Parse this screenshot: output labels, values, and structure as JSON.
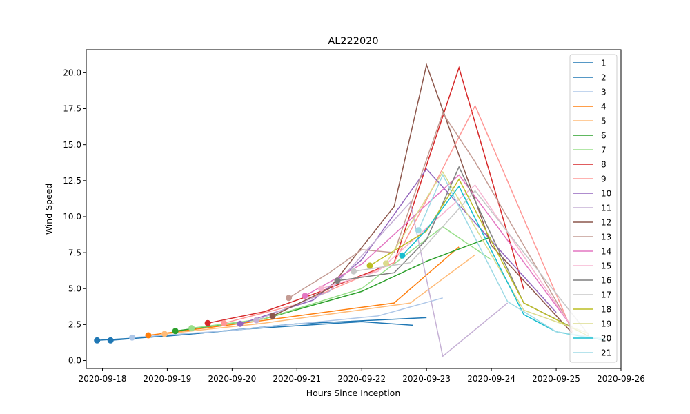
{
  "chart_data": {
    "type": "line",
    "title": "AL222020",
    "xlabel": "Hours Since Inception",
    "ylabel": "Wind Speed",
    "x_type": "date",
    "xlim": [
      "2020-09-17T18:00",
      "2020-09-26T00:00"
    ],
    "ylim": [
      -0.55,
      21.6
    ],
    "x_ticks": [
      "2020-09-18",
      "2020-09-19",
      "2020-09-20",
      "2020-09-21",
      "2020-09-22",
      "2020-09-23",
      "2020-09-24",
      "2020-09-25",
      "2020-09-26"
    ],
    "y_ticks": [
      "0.0",
      "2.5",
      "5.0",
      "7.5",
      "10.0",
      "12.5",
      "15.0",
      "17.5",
      "20.0"
    ],
    "grid": false,
    "legend_position": "top-right",
    "series": [
      {
        "name": "1",
        "color": "#1f77b4",
        "marker": {
          "x": "2020-09-17T22:00",
          "y": 1.4
        },
        "x": [
          "2020-09-17T22:00",
          "2020-09-19T00:00",
          "2020-09-20T06:00",
          "2020-09-22T00:00",
          "2020-09-22T19:00"
        ],
        "y": [
          1.4,
          1.7,
          2.2,
          2.7,
          2.45
        ]
      },
      {
        "name": "2",
        "color": "#1f77b4",
        "marker": {
          "x": "2020-09-18T03:00",
          "y": 1.4
        },
        "x": [
          "2020-09-18T03:00",
          "2020-09-19T12:00",
          "2020-09-21T00:00",
          "2020-09-23T00:00"
        ],
        "y": [
          1.4,
          1.9,
          2.55,
          2.98
        ]
      },
      {
        "name": "3",
        "color": "#aec7e8",
        "marker": {
          "x": "2020-09-18T11:00",
          "y": 1.6
        },
        "x": [
          "2020-09-18T11:00",
          "2020-09-20T00:00",
          "2020-09-22T06:00",
          "2020-09-23T06:00"
        ],
        "y": [
          1.6,
          2.1,
          3.1,
          4.35
        ]
      },
      {
        "name": "4",
        "color": "#ff7f0e",
        "marker": {
          "x": "2020-09-18T17:00",
          "y": 1.75
        },
        "x": [
          "2020-09-18T17:00",
          "2020-09-20T00:00",
          "2020-09-22T12:00",
          "2020-09-23T12:00"
        ],
        "y": [
          1.75,
          2.5,
          4.0,
          7.9
        ]
      },
      {
        "name": "5",
        "color": "#ffbb78",
        "marker": {
          "x": "2020-09-18T23:00",
          "y": 1.85
        },
        "x": [
          "2020-09-18T23:00",
          "2020-09-20T12:00",
          "2020-09-22T18:00",
          "2020-09-23T18:00"
        ],
        "y": [
          1.85,
          2.6,
          4.0,
          7.35
        ]
      },
      {
        "name": "6",
        "color": "#2ca02c",
        "marker": {
          "x": "2020-09-19T03:00",
          "y": 2.05
        },
        "x": [
          "2020-09-19T03:00",
          "2020-09-20T12:00",
          "2020-09-22T00:00",
          "2020-09-23T00:00",
          "2020-09-24T00:00"
        ],
        "y": [
          2.05,
          2.9,
          4.8,
          6.9,
          8.6
        ]
      },
      {
        "name": "7",
        "color": "#98df8a",
        "marker": {
          "x": "2020-09-19T09:00",
          "y": 2.25
        },
        "x": [
          "2020-09-19T09:00",
          "2020-09-20T12:00",
          "2020-09-22T00:00",
          "2020-09-23T06:00",
          "2020-09-24T00:00"
        ],
        "y": [
          2.25,
          2.9,
          5.0,
          9.3,
          7.0
        ]
      },
      {
        "name": "8",
        "color": "#d62728",
        "marker": {
          "x": "2020-09-19T15:00",
          "y": 2.6
        },
        "x": [
          "2020-09-19T15:00",
          "2020-09-20T12:00",
          "2020-09-21T06:00",
          "2020-09-22T12:00",
          "2020-09-23T12:00",
          "2020-09-24T12:00"
        ],
        "y": [
          2.6,
          3.4,
          4.6,
          6.8,
          20.35,
          4.95
        ]
      },
      {
        "name": "9",
        "color": "#ff9896",
        "marker": {
          "x": "2020-09-19T21:00",
          "y": 2.6
        },
        "x": [
          "2020-09-19T21:00",
          "2020-09-21T00:00",
          "2020-09-22T12:00",
          "2020-09-23T18:00",
          "2020-09-25T06:00"
        ],
        "y": [
          2.6,
          3.9,
          6.8,
          17.7,
          2.0
        ]
      },
      {
        "name": "10",
        "color": "#9467bd",
        "marker": {
          "x": "2020-09-20T03:00",
          "y": 2.55
        },
        "x": [
          "2020-09-20T03:00",
          "2020-09-21T06:00",
          "2020-09-22T00:00",
          "2020-09-23T00:00",
          "2020-09-25T00:00"
        ],
        "y": [
          2.55,
          4.2,
          7.0,
          13.3,
          3.35
        ]
      },
      {
        "name": "11",
        "color": "#c5b0d5",
        "marker": {
          "x": "2020-09-20T09:00",
          "y": 2.8
        },
        "x": [
          "2020-09-20T09:00",
          "2020-09-21T12:00",
          "2020-09-22T18:00",
          "2020-09-23T06:00",
          "2020-09-24T06:00"
        ],
        "y": [
          2.8,
          4.8,
          11.0,
          0.3,
          4.0
        ]
      },
      {
        "name": "12",
        "color": "#8c564b",
        "marker": {
          "x": "2020-09-20T15:00",
          "y": 3.1
        },
        "x": [
          "2020-09-20T15:00",
          "2020-09-21T12:00",
          "2020-09-22T12:00",
          "2020-09-23T00:00",
          "2020-09-24T00:00",
          "2020-09-25T06:00"
        ],
        "y": [
          3.1,
          5.0,
          10.7,
          20.55,
          8.0,
          1.9
        ]
      },
      {
        "name": "13",
        "color": "#c49c94",
        "marker": {
          "x": "2020-09-20T21:00",
          "y": 4.35
        },
        "x": [
          "2020-09-20T21:00",
          "2020-09-21T12:00",
          "2020-09-22T00:00",
          "2020-09-22T12:00",
          "2020-09-23T06:00",
          "2020-09-23T18:00",
          "2020-09-25T06:00"
        ],
        "y": [
          4.35,
          6.1,
          7.7,
          7.5,
          17.2,
          13.8,
          2.2
        ]
      },
      {
        "name": "14",
        "color": "#e377c2",
        "marker": {
          "x": "2020-09-21T03:00",
          "y": 4.5
        },
        "x": [
          "2020-09-21T03:00",
          "2020-09-22T00:00",
          "2020-09-23T12:00",
          "2020-09-25T06:00"
        ],
        "y": [
          4.5,
          6.7,
          12.9,
          2.3
        ]
      },
      {
        "name": "15",
        "color": "#f7b6d2",
        "marker": {
          "x": "2020-09-21T09:00",
          "y": 5.0
        },
        "x": [
          "2020-09-21T09:00",
          "2020-09-22T06:00",
          "2020-09-23T18:00",
          "2020-09-25T06:00"
        ],
        "y": [
          5.0,
          6.2,
          12.2,
          2.3
        ]
      },
      {
        "name": "16",
        "color": "#7f7f7f",
        "marker": {
          "x": "2020-09-21T15:00",
          "y": 5.55
        },
        "x": [
          "2020-09-21T15:00",
          "2020-09-22T12:00",
          "2020-09-23T00:00",
          "2020-09-23T12:00",
          "2020-09-24T12:00",
          "2020-09-25T06:00"
        ],
        "y": [
          5.55,
          6.1,
          8.4,
          13.45,
          4.0,
          2.3
        ]
      },
      {
        "name": "17",
        "color": "#c7c7c7",
        "marker": {
          "x": "2020-09-21T21:00",
          "y": 6.2
        },
        "x": [
          "2020-09-21T21:00",
          "2020-09-22T18:00",
          "2020-09-23T18:00",
          "2020-09-25T12:00"
        ],
        "y": [
          6.2,
          6.8,
          11.8,
          1.8
        ]
      },
      {
        "name": "18",
        "color": "#bcbd22",
        "marker": {
          "x": "2020-09-22T03:00",
          "y": 6.6
        },
        "x": [
          "2020-09-22T03:00",
          "2020-09-23T00:00",
          "2020-09-23T12:00",
          "2020-09-24T12:00",
          "2020-09-25T12:00"
        ],
        "y": [
          6.6,
          9.0,
          12.6,
          4.0,
          1.7
        ]
      },
      {
        "name": "19",
        "color": "#dbdb8d",
        "marker": {
          "x": "2020-09-22T09:00",
          "y": 6.75
        },
        "x": [
          "2020-09-22T09:00",
          "2020-09-23T06:00",
          "2020-09-24T12:00",
          "2020-09-25T12:00"
        ],
        "y": [
          6.75,
          13.1,
          3.5,
          1.9
        ]
      },
      {
        "name": "20",
        "color": "#17becf",
        "marker": {
          "x": "2020-09-22T15:00",
          "y": 7.3
        },
        "x": [
          "2020-09-22T15:00",
          "2020-09-23T00:00",
          "2020-09-23T12:00",
          "2020-09-24T12:00",
          "2020-09-25T00:00",
          "2020-09-25T18:00"
        ],
        "y": [
          7.3,
          9.1,
          12.1,
          3.2,
          2.0,
          1.4
        ]
      },
      {
        "name": "21",
        "color": "#9edae5",
        "marker": {
          "x": "2020-09-22T21:00",
          "y": 9.05
        },
        "x": [
          "2020-09-22T21:00",
          "2020-09-23T06:00",
          "2020-09-24T06:00",
          "2020-09-25T00:00",
          "2020-09-25T18:00"
        ],
        "y": [
          9.05,
          12.9,
          4.1,
          2.0,
          1.5
        ]
      }
    ]
  }
}
